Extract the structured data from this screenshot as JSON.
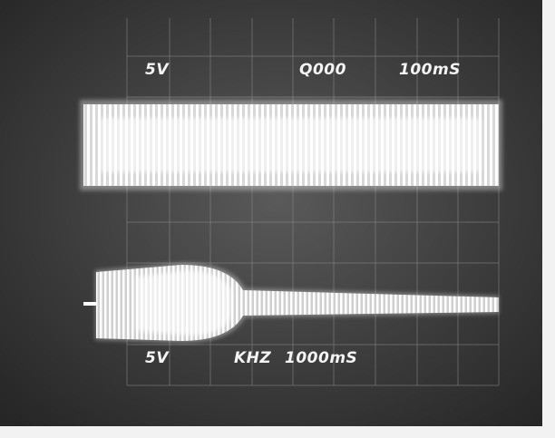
{
  "top_readout": {
    "volts": "5V",
    "trigger": "Q000",
    "timebase": "100mS"
  },
  "bottom_readout": {
    "volts": "5V",
    "unit": "KHZ",
    "timebase": "1000mS"
  }
}
